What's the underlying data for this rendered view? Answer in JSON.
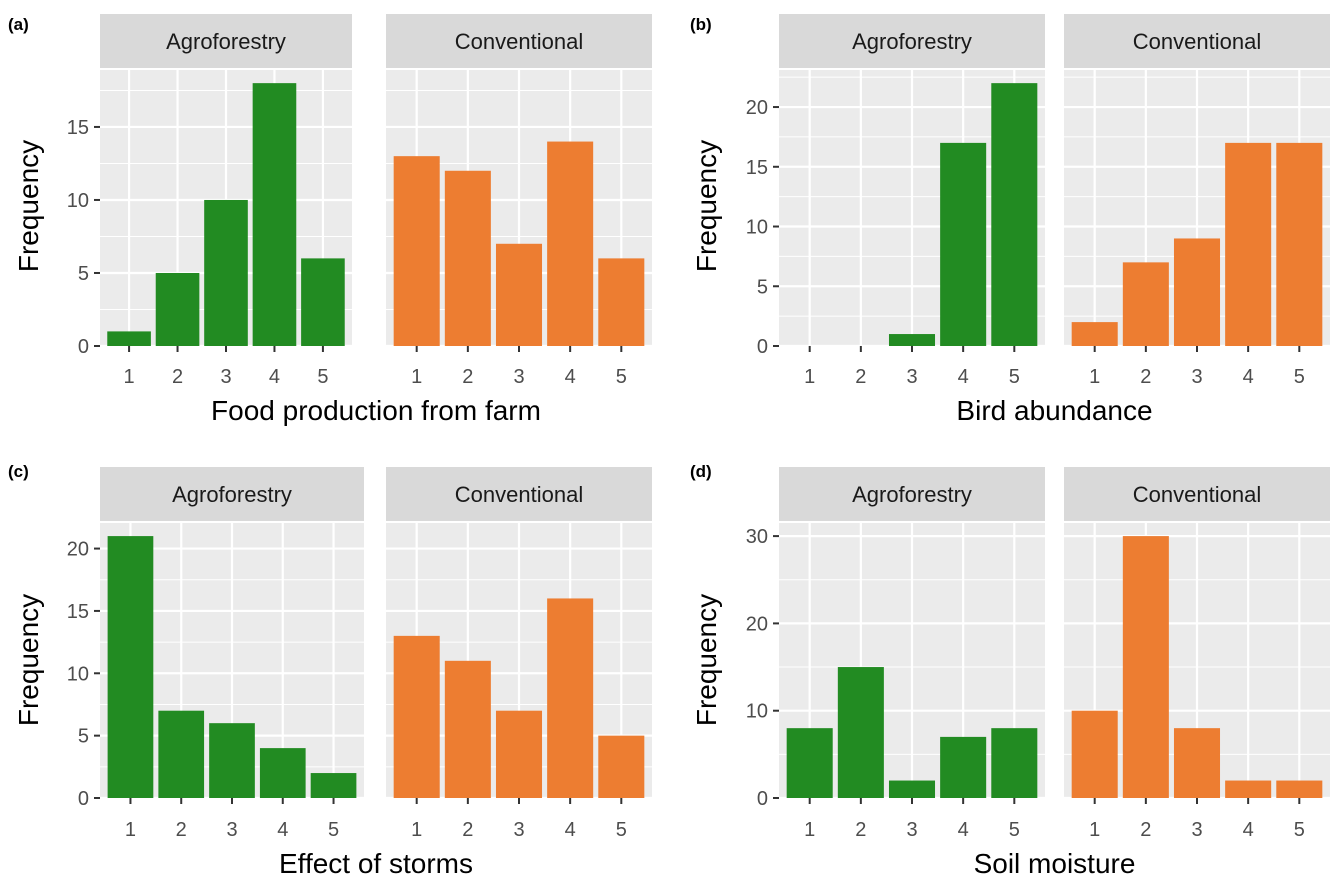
{
  "colors": {
    "Agroforestry": "#228b22",
    "Conventional": "#ed7d31",
    "panel_bg": "#ebebeb",
    "strip_bg": "#d9d9d9",
    "grid": "#ffffff"
  },
  "chart_data": [
    {
      "tag": "(a)",
      "type": "bar",
      "xlabel": "Food production from farm",
      "ylabel": "Frequency",
      "categories": [
        "1",
        "2",
        "3",
        "4",
        "5"
      ],
      "ylim": [
        0,
        18.9
      ],
      "yticks": [
        "0",
        "5",
        "10",
        "15"
      ],
      "facets": [
        "Agroforestry",
        "Conventional"
      ],
      "series": [
        {
          "name": "Agroforestry",
          "values": [
            1,
            5,
            10,
            18,
            6
          ]
        },
        {
          "name": "Conventional",
          "values": [
            13,
            12,
            7,
            14,
            6
          ]
        }
      ]
    },
    {
      "tag": "(b)",
      "type": "bar",
      "xlabel": "Bird abundance",
      "ylabel": "Frequency",
      "categories": [
        "1",
        "2",
        "3",
        "4",
        "5"
      ],
      "ylim": [
        0,
        23.1
      ],
      "yticks": [
        "0",
        "5",
        "10",
        "15",
        "20"
      ],
      "facets": [
        "Agroforestry",
        "Conventional"
      ],
      "series": [
        {
          "name": "Agroforestry",
          "values": [
            0,
            0,
            1,
            17,
            22
          ]
        },
        {
          "name": "Conventional",
          "values": [
            2,
            7,
            9,
            17,
            17
          ]
        }
      ]
    },
    {
      "tag": "(c)",
      "type": "bar",
      "xlabel": "Effect of storms",
      "ylabel": "Frequency",
      "categories": [
        "1",
        "2",
        "3",
        "4",
        "5"
      ],
      "ylim": [
        0,
        22.05
      ],
      "yticks": [
        "0",
        "5",
        "10",
        "15",
        "20"
      ],
      "facets": [
        "Agroforestry",
        "Conventional"
      ],
      "series": [
        {
          "name": "Agroforestry",
          "values": [
            21,
            7,
            6,
            4,
            2
          ]
        },
        {
          "name": "Conventional",
          "values": [
            13,
            11,
            7,
            16,
            5
          ]
        }
      ]
    },
    {
      "tag": "(d)",
      "type": "bar",
      "xlabel": "Soil moisture",
      "ylabel": "Frequency",
      "categories": [
        "1",
        "2",
        "3",
        "4",
        "5"
      ],
      "ylim": [
        0,
        31.5
      ],
      "yticks": [
        "0",
        "10",
        "20",
        "30"
      ],
      "facets": [
        "Agroforestry",
        "Conventional"
      ],
      "series": [
        {
          "name": "Agroforestry",
          "values": [
            8,
            15,
            2,
            7,
            8
          ]
        },
        {
          "name": "Conventional",
          "values": [
            10,
            30,
            8,
            2,
            2
          ]
        }
      ]
    }
  ]
}
